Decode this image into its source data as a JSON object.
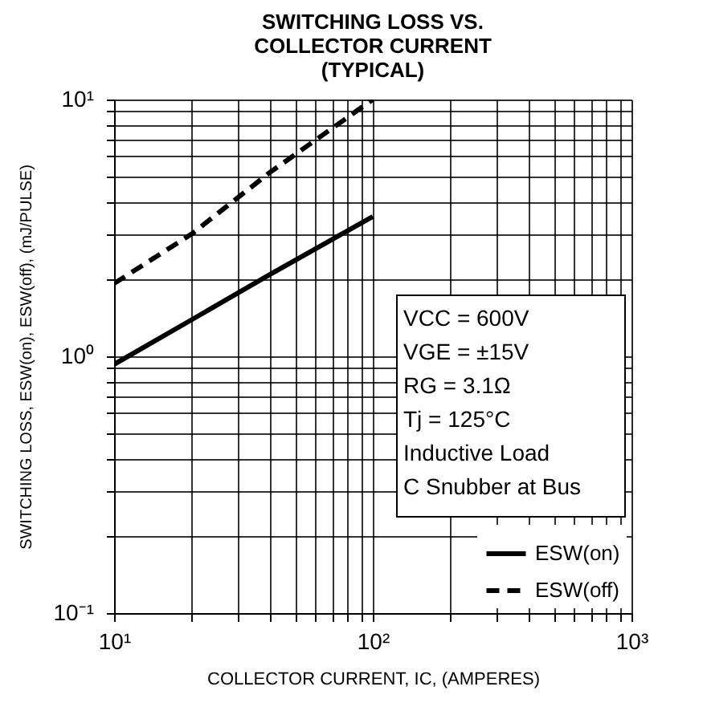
{
  "chart_data": {
    "type": "line",
    "title": "SWITCHING LOSS VS.\nCOLLECTOR CURRENT\n(TYPICAL)",
    "xlabel": "COLLECTOR CURRENT, IC, (AMPERES)",
    "ylabel": "SWITCHING LOSS, ESW(on), ESW(off), (mJ/PULSE)",
    "log": "xy",
    "xlim": [
      10,
      1000
    ],
    "ylim": [
      0.1,
      10
    ],
    "xticks": [
      {
        "value": 10,
        "label": "10¹"
      },
      {
        "value": 20,
        "label": null
      },
      {
        "value": 30,
        "label": null
      },
      {
        "value": 40,
        "label": null
      },
      {
        "value": 50,
        "label": null
      },
      {
        "value": 60,
        "label": null
      },
      {
        "value": 70,
        "label": null
      },
      {
        "value": 80,
        "label": null
      },
      {
        "value": 90,
        "label": null
      },
      {
        "value": 100,
        "label": "10²"
      },
      {
        "value": 200,
        "label": null
      },
      {
        "value": 300,
        "label": null
      },
      {
        "value": 400,
        "label": null
      },
      {
        "value": 500,
        "label": null
      },
      {
        "value": 600,
        "label": null
      },
      {
        "value": 700,
        "label": null
      },
      {
        "value": 800,
        "label": null
      },
      {
        "value": 900,
        "label": null
      },
      {
        "value": 1000,
        "label": "10³"
      }
    ],
    "yticks": [
      {
        "value": 0.1,
        "label": "10⁻¹"
      },
      {
        "value": 0.2,
        "label": null
      },
      {
        "value": 0.3,
        "label": null
      },
      {
        "value": 0.4,
        "label": null
      },
      {
        "value": 0.5,
        "label": null
      },
      {
        "value": 0.6,
        "label": null
      },
      {
        "value": 0.7,
        "label": null
      },
      {
        "value": 0.8,
        "label": null
      },
      {
        "value": 0.9,
        "label": null
      },
      {
        "value": 1,
        "label": "10⁰"
      },
      {
        "value": 2,
        "label": null
      },
      {
        "value": 3,
        "label": null
      },
      {
        "value": 4,
        "label": null
      },
      {
        "value": 5,
        "label": null
      },
      {
        "value": 6,
        "label": null
      },
      {
        "value": 7,
        "label": null
      },
      {
        "value": 8,
        "label": null
      },
      {
        "value": 9,
        "label": null
      },
      {
        "value": 10,
        "label": "10¹"
      }
    ],
    "grid": true,
    "legend": "bottom right",
    "annotations": [
      "VCC = 600V",
      "VGE = ±15V",
      "RG = 3.1Ω",
      "Tj = 125°C",
      "Inductive Load",
      "C Snubber at Bus"
    ],
    "series": [
      {
        "name": "ESW(on)",
        "color": "#000000",
        "line_style": "solid",
        "x": [
          10,
          20,
          40,
          100
        ],
        "values": [
          0.93,
          1.39,
          2.08,
          3.5
        ]
      },
      {
        "name": "ESW(off)",
        "color": "#000000",
        "line_style": "dashed",
        "x": [
          10,
          20,
          40,
          100
        ],
        "values": [
          1.92,
          3.0,
          5.2,
          10
        ]
      }
    ]
  }
}
